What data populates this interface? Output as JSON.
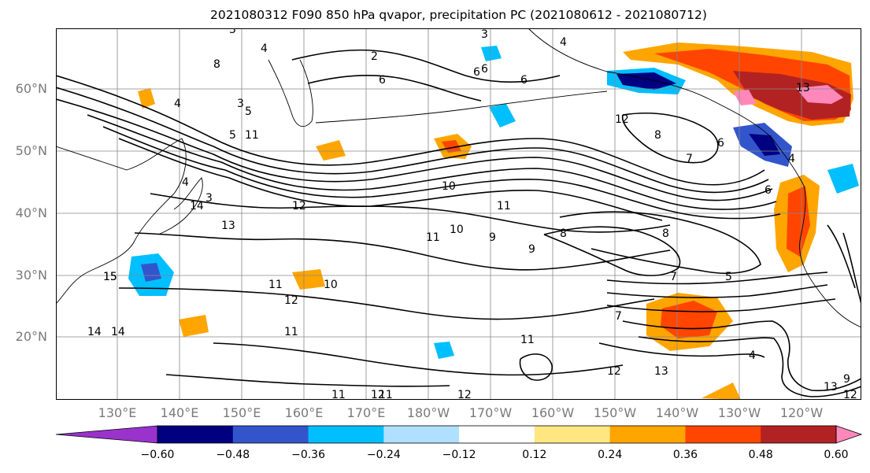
{
  "title": "2021080312 F090 850 hPa qvapor, precipitation PC (2021080612 - 2021080712)",
  "lat_labels": [
    "60°N",
    "50°N",
    "40°N",
    "30°N",
    "20°N"
  ],
  "lon_labels": [
    "130°E",
    "140°E",
    "150°E",
    "160°E",
    "170°E",
    "180°W",
    "170°W",
    "160°W",
    "150°W",
    "140°W",
    "130°W",
    "120°W"
  ],
  "colorbar": {
    "colors": [
      "#9933cc",
      "#000080",
      "#3355cc",
      "#00bfff",
      "#b0e0ff",
      "#ffffff",
      "#ffe680",
      "#ffa500",
      "#ff4500",
      "#b22222",
      "#ff88bb"
    ],
    "ticks": [
      "−0.60",
      "−0.48",
      "−0.36",
      "−0.24",
      "−0.12",
      "0.12",
      "0.24",
      "0.36",
      "0.48",
      "0.60"
    ]
  },
  "contour_labels": [
    "3",
    "4",
    "6",
    "8",
    "3",
    "4",
    "6",
    "2",
    "3",
    "6",
    "6",
    "4",
    "5",
    "7",
    "5",
    "10",
    "11",
    "12",
    "13",
    "14",
    "15",
    "11",
    "12",
    "11",
    "10",
    "11",
    "9",
    "10",
    "9",
    "8",
    "8",
    "7",
    "5",
    "15",
    "12",
    "14",
    "11",
    "12",
    "9",
    "4",
    "11",
    "12",
    "13",
    "13",
    "12",
    "11",
    "13",
    "8",
    "6",
    "4",
    "6",
    "4",
    "3",
    "7",
    "12",
    "14",
    "11"
  ]
}
